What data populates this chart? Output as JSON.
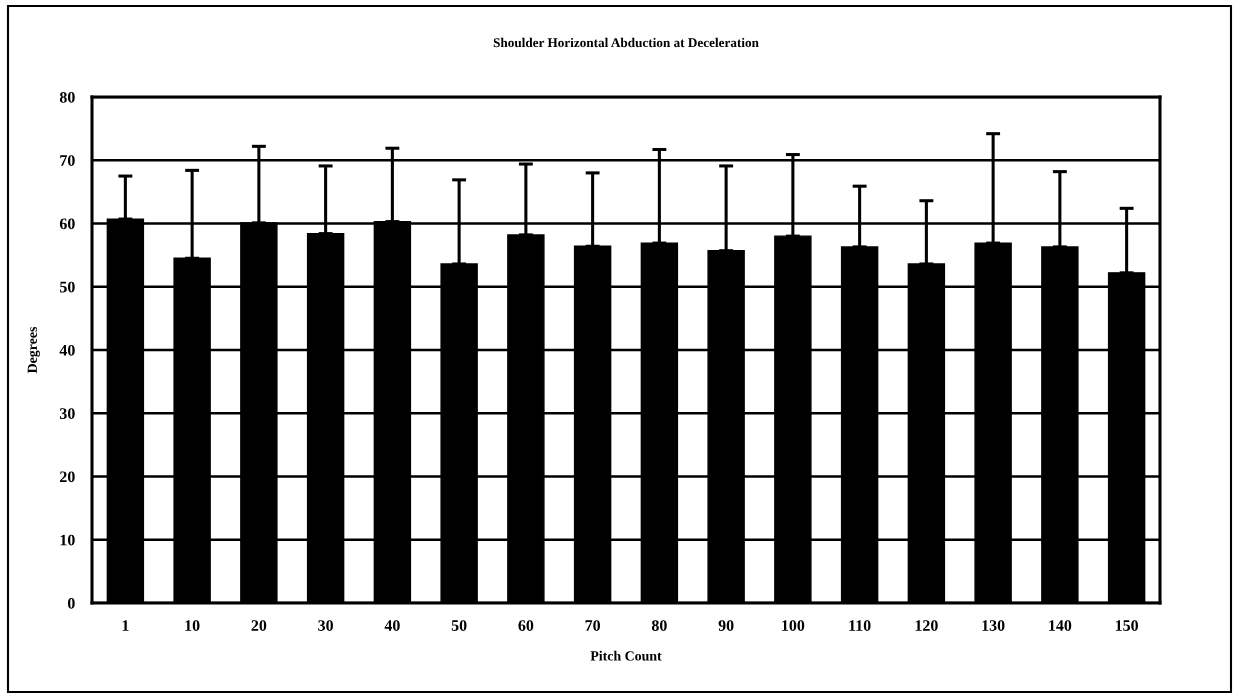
{
  "chart_data": {
    "type": "bar",
    "title": "Shoulder Horizontal Abduction at Deceleration",
    "xlabel": "Pitch Count",
    "ylabel": "Degrees",
    "categories": [
      "1",
      "10",
      "20",
      "30",
      "40",
      "50",
      "60",
      "70",
      "80",
      "90",
      "100",
      "110",
      "120",
      "130",
      "140",
      "150"
    ],
    "values": [
      60.7,
      54.5,
      60.1,
      58.4,
      60.3,
      53.6,
      58.2,
      56.4,
      56.9,
      55.7,
      58.0,
      56.3,
      53.6,
      56.9,
      56.3,
      52.2
    ],
    "errors": [
      [
        60.7,
        67.5
      ],
      [
        54.5,
        68.4
      ],
      [
        60.1,
        72.2
      ],
      [
        58.4,
        69.1
      ],
      [
        60.3,
        71.9
      ],
      [
        53.6,
        66.9
      ],
      [
        58.2,
        69.4
      ],
      [
        56.4,
        68.0
      ],
      [
        56.9,
        71.7
      ],
      [
        55.7,
        69.1
      ],
      [
        58.0,
        70.9
      ],
      [
        56.3,
        65.9
      ],
      [
        53.6,
        63.6
      ],
      [
        56.9,
        74.2
      ],
      [
        56.3,
        68.2
      ],
      [
        52.2,
        62.4
      ]
    ],
    "color": "#000000",
    "ylim": [
      0,
      80
    ],
    "yticks": [
      0,
      10,
      20,
      30,
      40,
      50,
      60,
      70,
      80
    ],
    "grid": "y"
  }
}
